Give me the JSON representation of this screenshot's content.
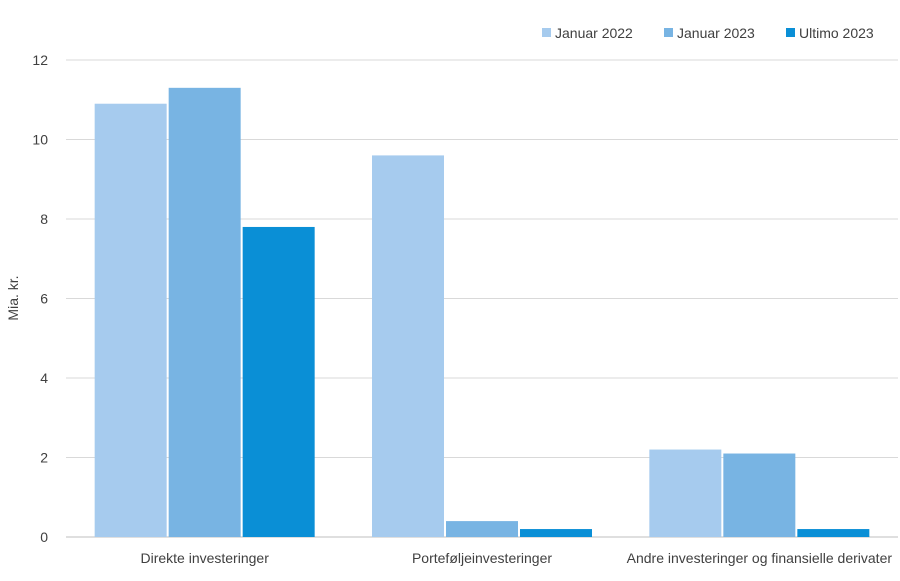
{
  "chart_data": {
    "type": "bar",
    "ylabel": "Mia. kr.",
    "ylim": [
      0,
      12
    ],
    "yticks": [
      "0",
      "2",
      "4",
      "6",
      "8",
      "10",
      "12"
    ],
    "categories": [
      "Direkte investeringer",
      "Porteføljeinvesteringer",
      "Andre investeringer og finansielle derivater"
    ],
    "series": [
      {
        "name": "Januar 2022",
        "color": "#a6cbee",
        "values": [
          10.9,
          9.6,
          2.2
        ]
      },
      {
        "name": "Januar 2023",
        "color": "#78b4e3",
        "values": [
          11.3,
          0.4,
          2.1
        ]
      },
      {
        "name": "Ultimo 2023",
        "color": "#0a8fd6",
        "values": [
          7.8,
          0.2,
          0.2
        ]
      }
    ],
    "grid": true,
    "legend_position": "top-right"
  }
}
